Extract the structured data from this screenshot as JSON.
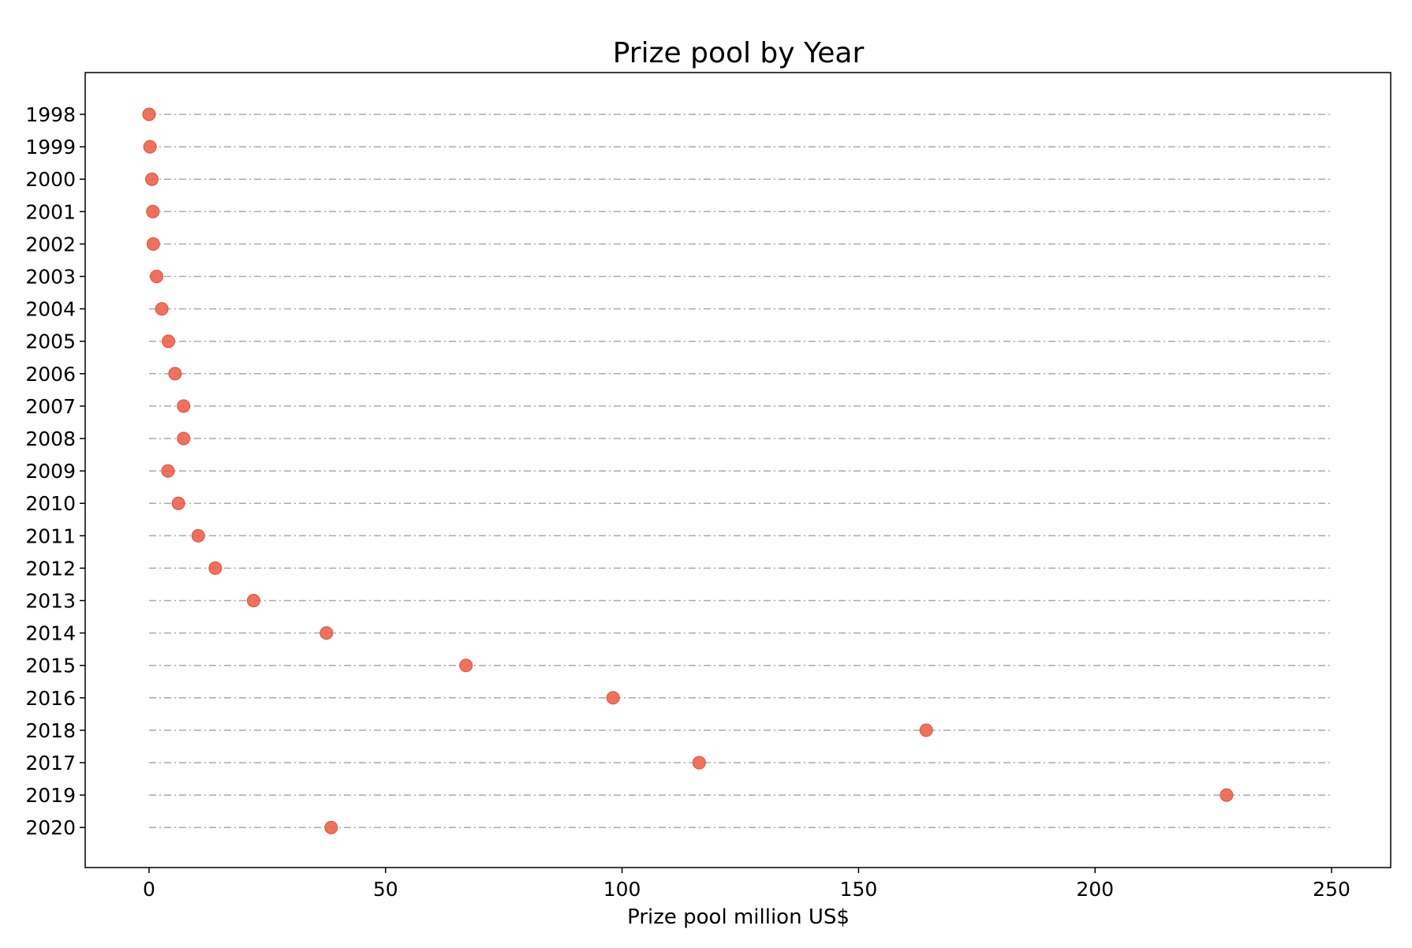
{
  "chart_data": {
    "type": "scatter",
    "title": "Prize pool by Year",
    "xlabel": "Prize pool million US$",
    "ylabel": "",
    "xlim": [
      -13.5,
      262.5
    ],
    "x_ticks": [
      0,
      50,
      100,
      150,
      200,
      250
    ],
    "categories": [
      "1998",
      "1999",
      "2000",
      "2001",
      "2002",
      "2003",
      "2004",
      "2005",
      "2006",
      "2007",
      "2008",
      "2009",
      "2010",
      "2011",
      "2012",
      "2013",
      "2014",
      "2015",
      "2016",
      "2018",
      "2017",
      "2019",
      "2020"
    ],
    "values": [
      0.0,
      0.2,
      0.6,
      0.8,
      0.9,
      1.6,
      2.7,
      4.1,
      5.5,
      7.3,
      7.3,
      4.0,
      6.2,
      10.4,
      14.0,
      22.1,
      37.5,
      67.0,
      98.1,
      164.3,
      116.3,
      227.8,
      38.5
    ],
    "grid": "horizontal dash-dot lines per category",
    "marker_color": "#f0624a",
    "guide_color": "#aaaaaa"
  }
}
